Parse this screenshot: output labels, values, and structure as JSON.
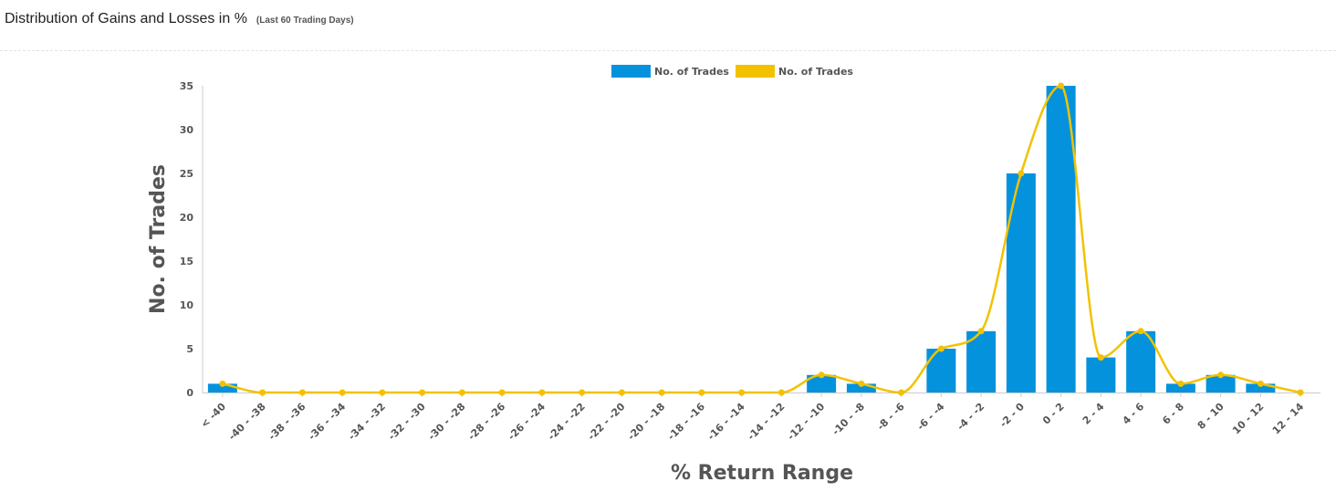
{
  "header": {
    "title": "Distribution of Gains and Losses in %",
    "subtitle": "(Last 60 Trading Days)"
  },
  "colors": {
    "bar": "#0592dd",
    "line": "#f2c200",
    "axis": "#cccccc",
    "text": "#555555"
  },
  "chart_data": {
    "type": "bar",
    "categories": [
      "< -40",
      "-40 - -38",
      "-38 - -36",
      "-36 - -34",
      "-34 - -32",
      "-32 - -30",
      "-30 - -28",
      "-28 - -26",
      "-26 - -24",
      "-24 - -22",
      "-22 - -20",
      "-20 - -18",
      "-18 - -16",
      "-16 - -14",
      "-14 - -12",
      "-12 - -10",
      "-10 - -8",
      "-8 - -6",
      "-6 - -4",
      "-4 - -2",
      "-2 - 0",
      "0 - 2",
      "2 - 4",
      "4 - 6",
      "6 - 8",
      "8 - 10",
      "10 - 12",
      "12 - 14"
    ],
    "series": [
      {
        "name": "No. of Trades",
        "type": "bar",
        "color": "#0592dd",
        "values": [
          1,
          0,
          0,
          0,
          0,
          0,
          0,
          0,
          0,
          0,
          0,
          0,
          0,
          0,
          0,
          2,
          1,
          0,
          5,
          7,
          25,
          35,
          4,
          7,
          1,
          2,
          1,
          0
        ]
      },
      {
        "name": "No. of Trades",
        "type": "spline",
        "color": "#f2c200",
        "values": [
          1,
          0,
          0,
          0,
          0,
          0,
          0,
          0,
          0,
          0,
          0,
          0,
          0,
          0,
          0,
          2,
          1,
          0,
          5,
          7,
          25,
          35,
          4,
          7,
          1,
          2,
          1,
          0
        ]
      }
    ],
    "xlabel": "% Return Range",
    "ylabel": "No. of Trades",
    "ylim": [
      0,
      35
    ],
    "yticks": [
      0,
      5,
      10,
      15,
      20,
      25,
      30,
      35
    ],
    "legend": "top-center",
    "grid": false
  }
}
